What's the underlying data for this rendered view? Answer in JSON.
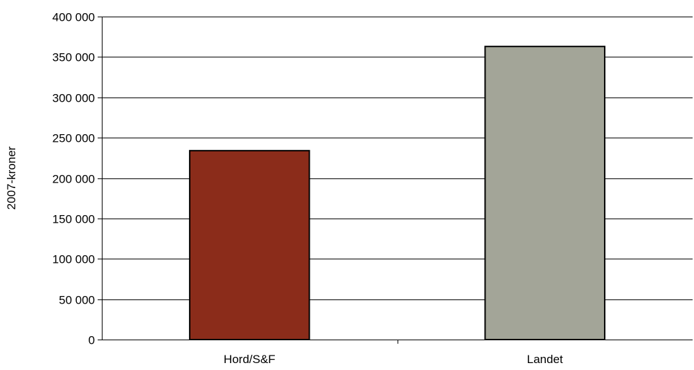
{
  "chart_data": {
    "type": "bar",
    "title": "",
    "xlabel": "",
    "ylabel": "2007-kroner",
    "categories": [
      "Hord/S&F",
      "Landet"
    ],
    "values": [
      234000,
      363000
    ],
    "ylim": [
      0,
      400000
    ],
    "ytick_values": [
      0,
      50000,
      100000,
      150000,
      200000,
      250000,
      300000,
      350000,
      400000
    ],
    "ytick_labels": [
      "0",
      "50 000",
      "100 000",
      "150 000",
      "200 000",
      "250 000",
      "300 000",
      "350 000",
      "400 000"
    ],
    "grid": true,
    "legend": "none",
    "bar_colors": [
      "#8B2C1A",
      "#A3A598"
    ]
  }
}
